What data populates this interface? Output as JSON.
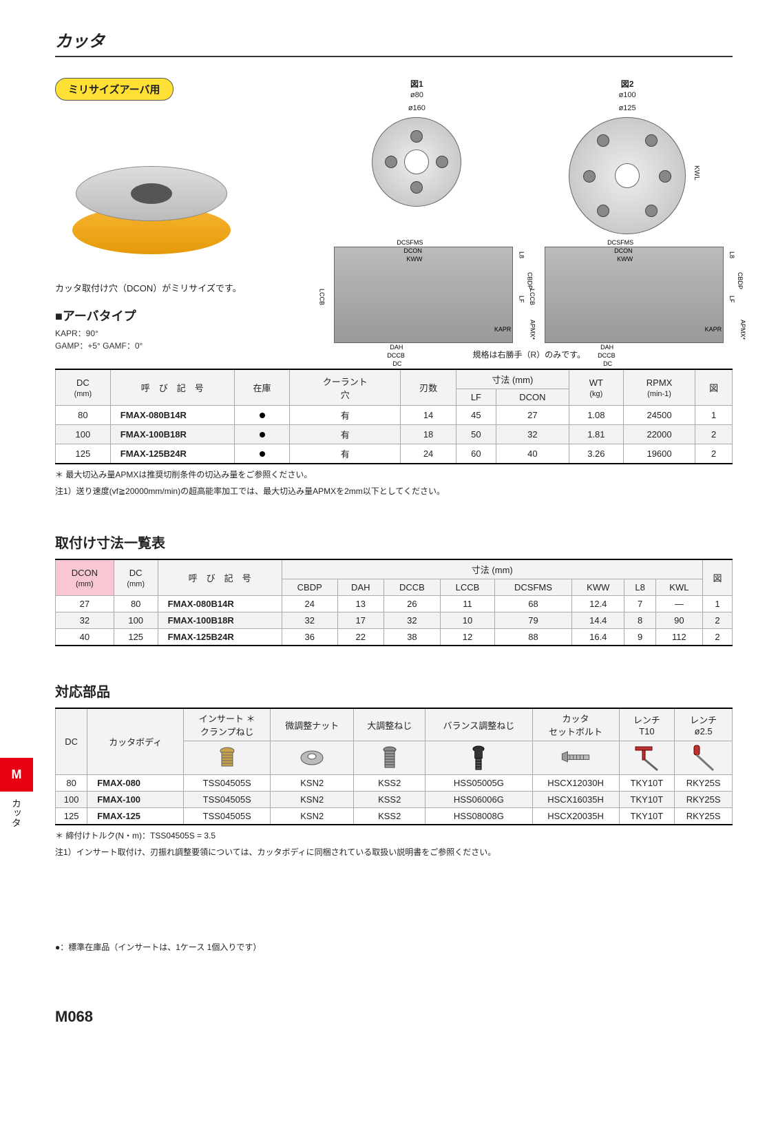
{
  "page_title": "カッタ",
  "badge": "ミリサイズアーバ用",
  "product_caption": "カッタ取付け穴（DCON）がミリサイズです。",
  "section_arbor": "■アーバタイプ",
  "spec_kapr": "KAPR：90°",
  "spec_gamp": "GAMP：+5°   GAMF：0°",
  "fig1_label": "図1",
  "fig1_sub1": "ø80",
  "fig1_sub2": "ø160",
  "fig2_label": "図2",
  "fig2_sub1": "ø100",
  "fig2_sub2": "ø125",
  "dim_dcsfms": "DCSFMS",
  "dim_dcon": "DCON",
  "dim_kww": "KWW",
  "dim_l8": "L8",
  "dim_cbdp": "CBDP",
  "dim_lf": "LF",
  "dim_kapr": "KAPR",
  "dim_lccb": "LCCB",
  "dim_dah": "DAH",
  "dim_dccb": "DCCB",
  "dim_dc": "DC",
  "dim_apmx": "APMX*",
  "dim_kwl": "KWL",
  "right_footnote": "規格は右勝手（R）のみです。",
  "table1": {
    "headers": {
      "dc": "DC",
      "dc_unit": "(mm)",
      "designation": "呼　び　記　号",
      "stock": "在庫",
      "coolant": "クーラント",
      "coolant2": "穴",
      "teeth": "刃数",
      "dims": "寸法 (mm)",
      "lf": "LF",
      "dcon": "DCON",
      "wt": "WT",
      "wt_unit": "(kg)",
      "rpmx": "RPMX",
      "rpmx_unit": "(min-1)",
      "fig": "図"
    },
    "rows": [
      {
        "dc": "80",
        "code": "FMAX-080B14R",
        "coolant": "有",
        "teeth": "14",
        "lf": "45",
        "dcon": "27",
        "wt": "1.08",
        "rpmx": "24500",
        "fig": "1"
      },
      {
        "dc": "100",
        "code": "FMAX-100B18R",
        "coolant": "有",
        "teeth": "18",
        "lf": "50",
        "dcon": "32",
        "wt": "1.81",
        "rpmx": "22000",
        "fig": "2"
      },
      {
        "dc": "125",
        "code": "FMAX-125B24R",
        "coolant": "有",
        "teeth": "24",
        "lf": "60",
        "dcon": "40",
        "wt": "3.26",
        "rpmx": "19600",
        "fig": "2"
      }
    ]
  },
  "table1_note1": "＊ 最大切込み量APMXは推奨切削条件の切込み量をご参照ください。",
  "table1_note2": "注1）送り速度(vf≧20000mm/min)の超高能率加工では、最大切込み量APMXを2mm以下としてください。",
  "section_mounting": "取付け寸法一覧表",
  "table2": {
    "headers": {
      "dcon": "DCON",
      "dcon_unit": "(mm)",
      "dc": "DC",
      "dc_unit": "(mm)",
      "designation": "呼　び　記　号",
      "dims": "寸法 (mm)",
      "cbdp": "CBDP",
      "dah": "DAH",
      "dccb": "DCCB",
      "lccb": "LCCB",
      "dcsfms": "DCSFMS",
      "kww": "KWW",
      "l8": "L8",
      "kwl": "KWL",
      "fig": "図"
    },
    "rows": [
      {
        "dcon": "27",
        "dc": "80",
        "code": "FMAX-080B14R",
        "cbdp": "24",
        "dah": "13",
        "dccb": "26",
        "lccb": "11",
        "dcsfms": "68",
        "kww": "12.4",
        "l8": "7",
        "kwl": "—",
        "fig": "1"
      },
      {
        "dcon": "32",
        "dc": "100",
        "code": "FMAX-100B18R",
        "cbdp": "32",
        "dah": "17",
        "dccb": "32",
        "lccb": "10",
        "dcsfms": "79",
        "kww": "14.4",
        "l8": "8",
        "kwl": "90",
        "fig": "2"
      },
      {
        "dcon": "40",
        "dc": "125",
        "code": "FMAX-125B24R",
        "cbdp": "36",
        "dah": "22",
        "dccb": "38",
        "lccb": "12",
        "dcsfms": "88",
        "kww": "16.4",
        "l8": "9",
        "kwl": "112",
        "fig": "2"
      }
    ]
  },
  "section_parts": "対応部品",
  "table3": {
    "headers": {
      "dc": "DC",
      "body": "カッタボディ",
      "clamp": "インサート",
      "clamp2": "クランプねじ",
      "clamp_mark": "＊",
      "micro": "微調整ナット",
      "large": "大調整ねじ",
      "balance": "バランス調整ねじ",
      "setbolt": "カッタ",
      "setbolt2": "セットボルト",
      "wrench_t10": "レンチ",
      "wrench_t10b": "T10",
      "wrench_25": "レンチ",
      "wrench_25b": "ø2.5"
    },
    "rows": [
      {
        "dc": "80",
        "body": "FMAX-080",
        "clamp": "TSS04505S",
        "micro": "KSN2",
        "large": "KSS2",
        "balance": "HSS05005G",
        "setbolt": "HSCX12030H",
        "w1": "TKY10T",
        "w2": "RKY25S"
      },
      {
        "dc": "100",
        "body": "FMAX-100",
        "clamp": "TSS04505S",
        "micro": "KSN2",
        "large": "KSS2",
        "balance": "HSS06006G",
        "setbolt": "HSCX16035H",
        "w1": "TKY10T",
        "w2": "RKY25S"
      },
      {
        "dc": "125",
        "body": "FMAX-125",
        "clamp": "TSS04505S",
        "micro": "KSN2",
        "large": "KSS2",
        "balance": "HSS08008G",
        "setbolt": "HSCX20035H",
        "w1": "TKY10T",
        "w2": "RKY25S"
      }
    ]
  },
  "table3_note1": "＊ 締付けトルク(N・m)：TSS04505S = 3.5",
  "table3_note2": "注1）インサート取付け、刃振れ調整要領については、カッタボディに同梱されている取扱い説明書をご参照ください。",
  "legend": "●：標準在庫品（インサートは、1ケース 1個入りです）",
  "sidetab_m": "M",
  "sidetab_text": "カッタ",
  "page_number": "M068"
}
